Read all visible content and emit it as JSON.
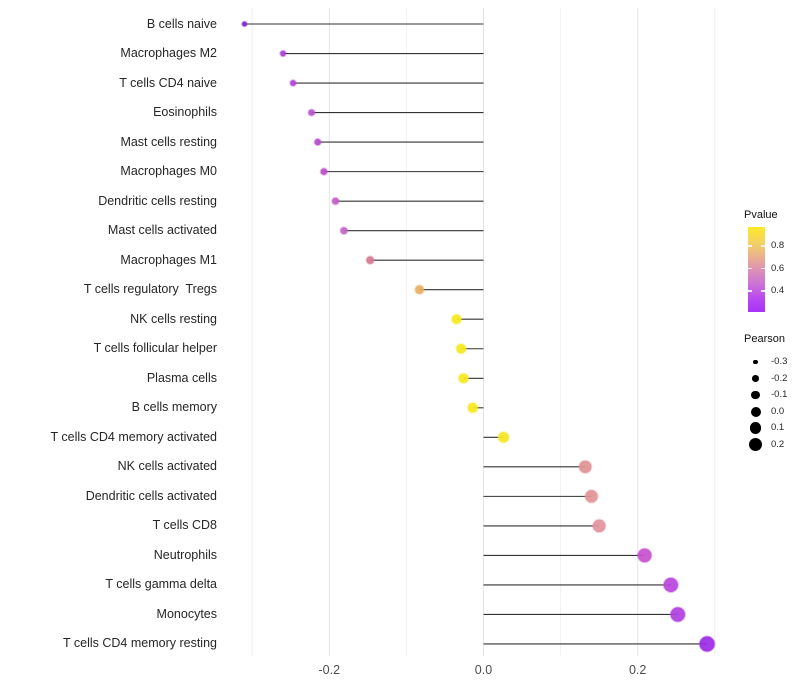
{
  "chart_data": {
    "type": "lollipop",
    "title": "",
    "xlabel": "",
    "ylabel": "",
    "grid": "vertical-only",
    "baseline": 0,
    "xlim": [
      -0.335,
      0.35
    ],
    "x_ticks": [
      {
        "label": "-0.2",
        "value": -0.2
      },
      {
        "label": "0.0",
        "value": 0.0
      },
      {
        "label": "0.2",
        "value": 0.2
      }
    ],
    "x_minor_ticks": [
      -0.3,
      -0.1,
      0.1,
      0.3
    ],
    "points": [
      {
        "label": "B cells naive",
        "pearson": -0.31,
        "color": "#7b24cf"
      },
      {
        "label": "Macrophages M2",
        "pearson": -0.26,
        "color": "#ad3fd4"
      },
      {
        "label": "T cells CD4 naive",
        "pearson": -0.247,
        "color": "#b144d6"
      },
      {
        "label": "Eosinophils",
        "pearson": -0.223,
        "color": "#bb4fd0"
      },
      {
        "label": "Mast cells resting",
        "pearson": -0.215,
        "color": "#b84bcd"
      },
      {
        "label": "Macrophages M0",
        "pearson": -0.207,
        "color": "#bb4fc9"
      },
      {
        "label": "Dendritic cells resting",
        "pearson": -0.192,
        "color": "#c35cc8"
      },
      {
        "label": "Mast cells activated",
        "pearson": -0.181,
        "color": "#c463c9"
      },
      {
        "label": "Macrophages M1",
        "pearson": -0.147,
        "color": "#d6798f"
      },
      {
        "label": "T cells regulatory  Tregs",
        "pearson": -0.083,
        "color": "#eaaf62"
      },
      {
        "label": "NK cells resting",
        "pearson": -0.035,
        "color": "#f7e91c"
      },
      {
        "label": "T cells follicular helper",
        "pearson": -0.029,
        "color": "#f7e91c"
      },
      {
        "label": "Plasma cells",
        "pearson": -0.026,
        "color": "#f7e91c"
      },
      {
        "label": "B cells memory",
        "pearson": -0.014,
        "color": "#f7e91c"
      },
      {
        "label": "T cells CD4 memory activated",
        "pearson": 0.026,
        "color": "#f6e522"
      },
      {
        "label": "NK cells activated",
        "pearson": 0.132,
        "color": "#e09394"
      },
      {
        "label": "Dendritic cells activated",
        "pearson": 0.14,
        "color": "#e29497"
      },
      {
        "label": "T cells CD8",
        "pearson": 0.15,
        "color": "#e2939e"
      },
      {
        "label": "Neutrophils",
        "pearson": 0.209,
        "color": "#c750cf"
      },
      {
        "label": "T cells gamma delta",
        "pearson": 0.243,
        "color": "#b845dc"
      },
      {
        "label": "Monocytes",
        "pearson": 0.252,
        "color": "#b03fe0"
      },
      {
        "label": "T cells CD4 memory resting",
        "pearson": 0.29,
        "color": "#9b2be6"
      }
    ],
    "legend_pvalue": {
      "title": "Pvalue",
      "tick_labels": [
        "0.8",
        "0.6",
        "0.4"
      ],
      "gradient_stops": [
        "#fce926",
        "#f5d45f",
        "#ecb48c",
        "#dd92b5",
        "#cd73d6",
        "#b94bef",
        "#a832f9"
      ]
    },
    "legend_pearson": {
      "title": "Pearson",
      "items": [
        {
          "label": "-0.3",
          "value": -0.3
        },
        {
          "label": "-0.2",
          "value": -0.2
        },
        {
          "label": "-0.1",
          "value": -0.1
        },
        {
          "label": "0.0",
          "value": 0.0
        },
        {
          "label": "0.1",
          "value": 0.1
        },
        {
          "label": "0.2",
          "value": 0.2
        }
      ]
    },
    "style": {
      "stem_color": "#333333",
      "major_grid_color": "#e4e4e4",
      "minor_grid_color": "#f1f1f1",
      "legend_dot_color": "#000000"
    }
  }
}
